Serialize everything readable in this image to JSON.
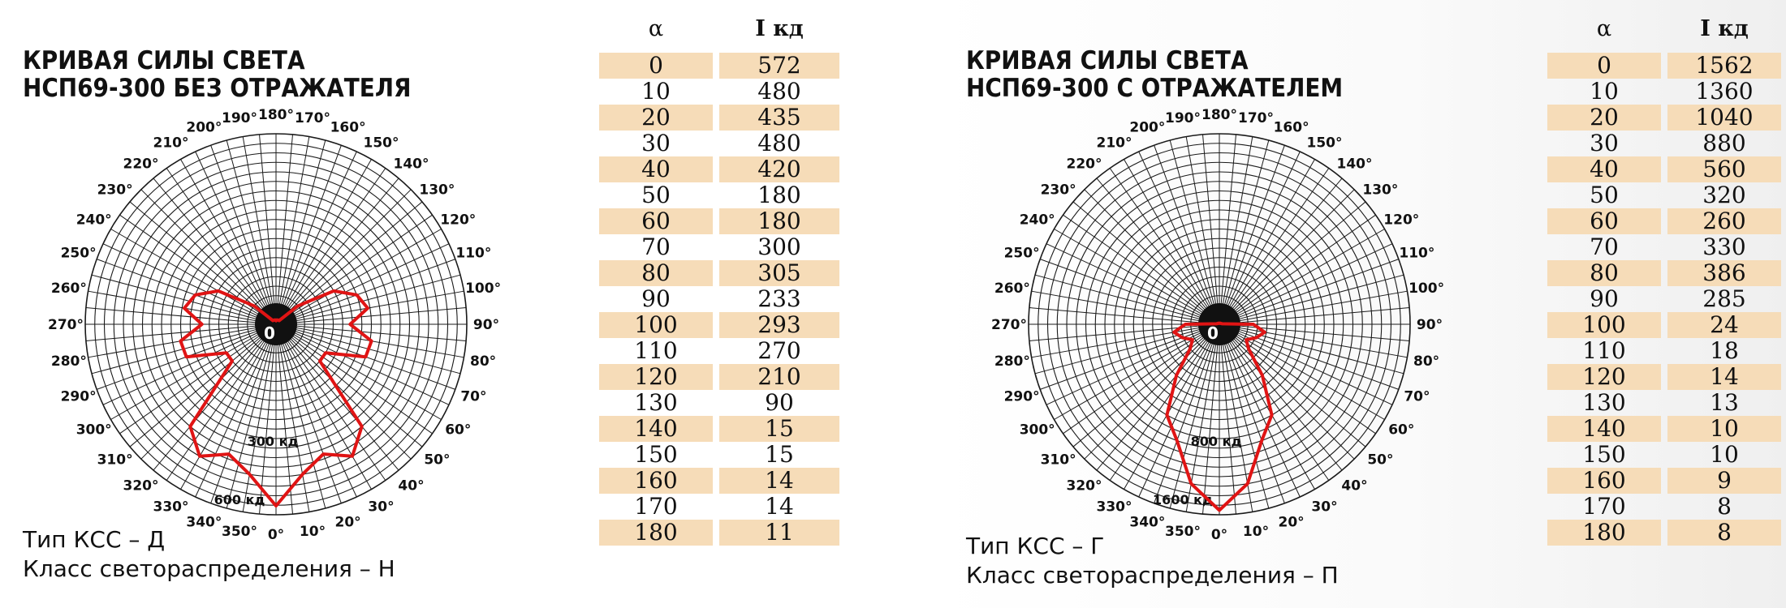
{
  "panels": [
    {
      "title_line1": "КРИВАЯ СИЛЫ СВЕТА",
      "title_line2": "НСП69-300 БЕЗ ОТРАЖАТЕЛЯ",
      "ksstype": "Тип КСС – Д",
      "ksclass": "Класс светораспределения – Н",
      "scale_labels": [
        "300 кд",
        "600 кд"
      ],
      "center_label": "0",
      "angle_labels": [
        "0°",
        "10°",
        "20°",
        "30°",
        "40°",
        "50°",
        "60°",
        "70°",
        "80°",
        "90°",
        "100°",
        "110°",
        "120°",
        "130°",
        "140°",
        "150°",
        "160°",
        "170°",
        "180°",
        "190°",
        "200°",
        "210°",
        "220°",
        "230°",
        "240°",
        "250°",
        "260°",
        "270°",
        "280°",
        "290°",
        "300°",
        "310°",
        "320°",
        "330°",
        "340°",
        "350°"
      ]
    },
    {
      "title_line1": "КРИВАЯ СИЛЫ СВЕТА",
      "title_line2": "НСП69-300 С ОТРАЖАТЕЛЕМ",
      "ksstype": "Тип КСС – Г",
      "ksclass": "Класс светораспределения – П",
      "scale_labels": [
        "800 кд",
        "1600 кд"
      ],
      "center_label": "0",
      "angle_labels": [
        "0°",
        "10°",
        "20°",
        "30°",
        "40°",
        "50°",
        "60°",
        "70°",
        "80°",
        "90°",
        "100°",
        "110°",
        "120°",
        "130°",
        "140°",
        "150°",
        "160°",
        "170°",
        "180°",
        "190°",
        "200°",
        "210°",
        "220°",
        "230°",
        "240°",
        "250°",
        "260°",
        "270°",
        "280°",
        "290°",
        "300°",
        "310°",
        "320°",
        "330°",
        "340°",
        "350°"
      ]
    }
  ],
  "table_header": {
    "alpha": "α",
    "intensity": "I кд"
  },
  "colors": {
    "curve": "#e01414",
    "grid": "#1a1a1a",
    "row_shade": "#f6dcb8"
  },
  "chart_data": [
    {
      "type": "polar",
      "title": "КРИВАЯ СИЛЫ СВЕТА НСП69-300 БЕЗ ОТРАЖАТЕЛЯ",
      "rmax": 600,
      "x": [
        0,
        10,
        20,
        30,
        40,
        50,
        60,
        70,
        80,
        90,
        100,
        110,
        120,
        130,
        140,
        150,
        160,
        170,
        180
      ],
      "values": [
        572,
        480,
        435,
        480,
        420,
        180,
        180,
        300,
        305,
        233,
        293,
        270,
        210,
        90,
        15,
        15,
        14,
        14,
        11
      ],
      "x_label": "α",
      "y_label": "I кд"
    },
    {
      "type": "polar",
      "title": "КРИВАЯ СИЛЫ СВЕТА НСП69-300 С ОТРАЖАТЕЛЕМ",
      "rmax": 1600,
      "x": [
        0,
        10,
        20,
        30,
        40,
        50,
        60,
        70,
        80,
        90,
        100,
        110,
        120,
        130,
        140,
        150,
        160,
        170,
        180
      ],
      "values": [
        1562,
        1360,
        1040,
        880,
        560,
        320,
        260,
        330,
        386,
        285,
        24,
        18,
        14,
        13,
        10,
        10,
        9,
        8,
        8
      ],
      "x_label": "α",
      "y_label": "I кд"
    }
  ]
}
